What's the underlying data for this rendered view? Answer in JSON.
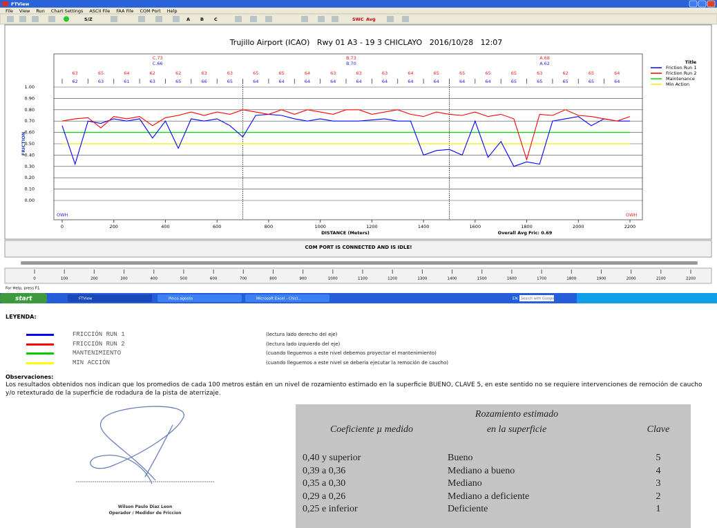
{
  "window": {
    "title": "FTView",
    "menu": [
      "File",
      "View",
      "Run",
      "Chart Settings",
      "ASCII File",
      "FAA File",
      "COM Port",
      "Help"
    ],
    "toolbar": [
      "S/Z",
      "A",
      "B",
      "C",
      "SWC",
      "Avg"
    ],
    "status_message": "COM PORT IS CONNECTED AND IS IDLE!",
    "ruler_ticks": [
      0,
      100,
      200,
      300,
      400,
      500,
      600,
      700,
      800,
      900,
      1000,
      1100,
      1200,
      1300,
      1400,
      1500,
      1600,
      1700,
      1800,
      1900,
      2000,
      2100,
      2200
    ],
    "status_bar": "For Help, press F1",
    "taskbar": {
      "start": "start",
      "items": [
        "FTView",
        "Pinco agosto",
        "Microsoft Excel - Chicl..."
      ],
      "language": "EN",
      "search": "Search with Google"
    }
  },
  "chart_data": {
    "type": "line",
    "title": "Trujillo Airport (ICAO)   Rwy 01 A3 - 19 3 CHICLAYO   2016/10/28   12:07",
    "x_label": "DISTANCE (Meters)",
    "y_label": "FRICTION",
    "summary": "Overall Avg Fric: 0.69",
    "legend_title": "Title",
    "x": [
      0,
      50,
      100,
      150,
      200,
      250,
      300,
      350,
      400,
      450,
      500,
      550,
      600,
      650,
      700,
      750,
      800,
      850,
      900,
      950,
      1000,
      1050,
      1100,
      1150,
      1200,
      1250,
      1300,
      1350,
      1400,
      1450,
      1500,
      1550,
      1600,
      1650,
      1700,
      1750,
      1800,
      1850,
      1900,
      1950,
      2000,
      2050,
      2100,
      2150,
      2200
    ],
    "series": [
      {
        "name": "Friction Run 1",
        "color": "#0000ff",
        "values": [
          0.66,
          0.32,
          0.7,
          0.68,
          0.72,
          0.7,
          0.72,
          0.55,
          0.7,
          0.46,
          0.72,
          0.7,
          0.72,
          0.66,
          0.56,
          0.75,
          0.76,
          0.75,
          0.72,
          0.7,
          0.72,
          0.7,
          0.7,
          0.7,
          0.71,
          0.72,
          0.7,
          0.7,
          0.4,
          0.44,
          0.45,
          0.4,
          0.7,
          0.38,
          0.52,
          0.3,
          0.34,
          0.32,
          0.7,
          0.72,
          0.74,
          0.66,
          0.72,
          0.7,
          0.7
        ]
      },
      {
        "name": "Friction Run 2",
        "color": "#ff0000",
        "values": [
          0.7,
          0.72,
          0.73,
          0.64,
          0.74,
          0.72,
          0.74,
          0.66,
          0.73,
          0.75,
          0.78,
          0.75,
          0.78,
          0.76,
          0.8,
          0.78,
          0.76,
          0.8,
          0.76,
          0.8,
          0.78,
          0.76,
          0.8,
          0.8,
          0.76,
          0.78,
          0.8,
          0.76,
          0.74,
          0.78,
          0.76,
          0.75,
          0.78,
          0.74,
          0.76,
          0.72,
          0.36,
          0.76,
          0.75,
          0.8,
          0.75,
          0.74,
          0.72,
          0.7,
          0.74
        ]
      }
    ],
    "levels": [
      {
        "name": "Maintenance",
        "color": "#00dd00",
        "value": 0.6
      },
      {
        "name": "Min Action",
        "color": "#eeee00",
        "value": 0.5
      }
    ],
    "xlim": [
      0,
      2200
    ],
    "ylim": [
      0,
      1
    ],
    "xticks": [
      0,
      200,
      400,
      600,
      800,
      1000,
      1200,
      1400,
      1600,
      1800,
      2000,
      2200
    ],
    "yticks": [
      {
        "value": 1,
        "label": "1.00"
      },
      {
        "value": 0.9,
        "label": "0.90"
      },
      {
        "value": 0.8,
        "label": "0.80"
      },
      {
        "value": 0.7,
        "label": "0.70"
      },
      {
        "value": 0.6,
        "label": "0.60"
      },
      {
        "value": 0.5,
        "label": "0.50"
      },
      {
        "value": 0.4,
        "label": "0.40"
      },
      {
        "value": 0.3,
        "label": "0.30"
      },
      {
        "value": 0.2,
        "label": "0.20"
      },
      {
        "value": 0.1,
        "label": "0.10"
      },
      {
        "value": 0,
        "label": "0.00"
      }
    ],
    "grid": true,
    "dividers": [
      700,
      1500
    ],
    "thirds": [
      {
        "run2": "C.73",
        "run1": "C.66"
      },
      {
        "run2": "B.73",
        "run1": "B.70"
      },
      {
        "run2": "A.68",
        "run1": "A.62"
      }
    ],
    "section_values": {
      "run2": [
        63,
        65,
        64,
        62,
        62,
        63,
        63,
        65,
        65,
        64,
        63,
        63,
        63,
        64,
        65,
        65,
        65,
        65,
        63,
        62,
        65,
        64
      ],
      "run1": [
        62,
        63,
        61,
        63,
        65,
        66,
        65,
        64,
        64,
        64,
        64,
        64,
        64,
        64,
        64,
        64,
        64,
        65,
        65,
        65,
        65,
        64
      ]
    },
    "edge_labels": [
      "OWH",
      "OWH"
    ]
  },
  "legend_section": {
    "title": "LEYENDA:",
    "rows": [
      {
        "label": "FRICCIÓN RUN 1",
        "color": "#0000ff",
        "description": "(lectura lado derecho del eje)"
      },
      {
        "label": "FRICCIÓN RUN 2",
        "color": "#ff0000",
        "description": "(lectura lado izquierdo del eje)"
      },
      {
        "label": "MANTENIMIENTO",
        "color": "#00cc00",
        "description": "(cuando lleguemos a este nivel debemos proyectar el mantenimiento)"
      },
      {
        "label": "MIN ACCIÓN",
        "color": "#ffff00",
        "description": "(cuando lleguemos a este nivel se deberia ejecutar la remoción de caucho)"
      }
    ]
  },
  "observations": {
    "title": "Observaciones:",
    "text": "Los resultados obtenidos nos indican que los promedios de cada 100 metros están en un nivel de rozamiento estimado en la superficie BUENO, CLAVE 5, en este sentido no se requiere intervenciones de remoción de caucho y/o retexturado de la superficie de rodadura de la pista de aterrizaje."
  },
  "signature": {
    "name": "Wilson Paulo Diaz Leon",
    "role": "Operador / Medidor de Friccion"
  },
  "table": {
    "headers": [
      "Coeficiente µ medido",
      "Rozamiento estimado\nen la superficie",
      "Clave"
    ],
    "rows": [
      [
        "0,40 y superior",
        "Bueno",
        5
      ],
      [
        "0,39 a 0,36",
        "Mediano a bueno",
        4
      ],
      [
        "0,35 a 0,30",
        "Mediano",
        3
      ],
      [
        "0,29 a 0,26",
        "Mediano a deficiente",
        2
      ],
      [
        "0,25 e inferior",
        "Deficiente",
        1
      ]
    ]
  }
}
